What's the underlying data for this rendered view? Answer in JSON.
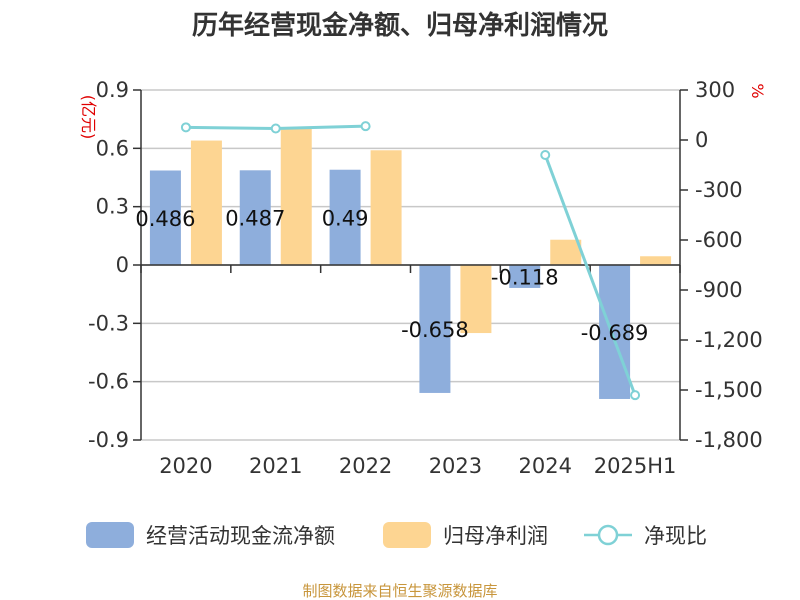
{
  "chart_data": {
    "type": "bar",
    "title": "历年经营现金净额、归母净利润情况",
    "categories": [
      "2020",
      "2021",
      "2022",
      "2023",
      "2024",
      "2025H1"
    ],
    "series": [
      {
        "name": "经营活动现金流净额",
        "type": "bar",
        "axis": "left",
        "values": [
          0.486,
          0.487,
          0.49,
          -0.658,
          -0.118,
          -0.689
        ],
        "labels": [
          "0.486",
          "0.487",
          "0.49",
          "-0.658",
          "-0.118",
          "-0.689"
        ],
        "color": "#8eaedc"
      },
      {
        "name": "归母净利润",
        "type": "bar",
        "axis": "left",
        "values": [
          0.64,
          0.71,
          0.59,
          -0.35,
          0.13,
          0.045
        ],
        "color": "#fdd592"
      },
      {
        "name": "净现比",
        "type": "line",
        "axis": "right",
        "values": [
          76,
          69,
          83,
          null,
          -90,
          -1531
        ],
        "color": "#7fd1d6"
      }
    ],
    "left_axis": {
      "unit": "(亿元)",
      "min": -0.9,
      "max": 0.9,
      "ticks": [
        0.9,
        0.6,
        0.3,
        0,
        -0.3,
        -0.6,
        -0.9
      ],
      "tick_labels": [
        "0.9",
        "0.6",
        "0.3",
        "0",
        "-0.3",
        "-0.6",
        "-0.9"
      ]
    },
    "right_axis": {
      "unit": "%",
      "min": -1800,
      "max": 300,
      "ticks": [
        300,
        0,
        -300,
        -600,
        -900,
        -1200,
        -1500,
        -1800
      ],
      "tick_labels": [
        "300",
        "0",
        "-300",
        "-600",
        "-900",
        "-1,200",
        "-1,500",
        "-1,800"
      ]
    },
    "grid": true,
    "legend_position": "bottom"
  },
  "footer": "制图数据来自恒生聚源数据库"
}
